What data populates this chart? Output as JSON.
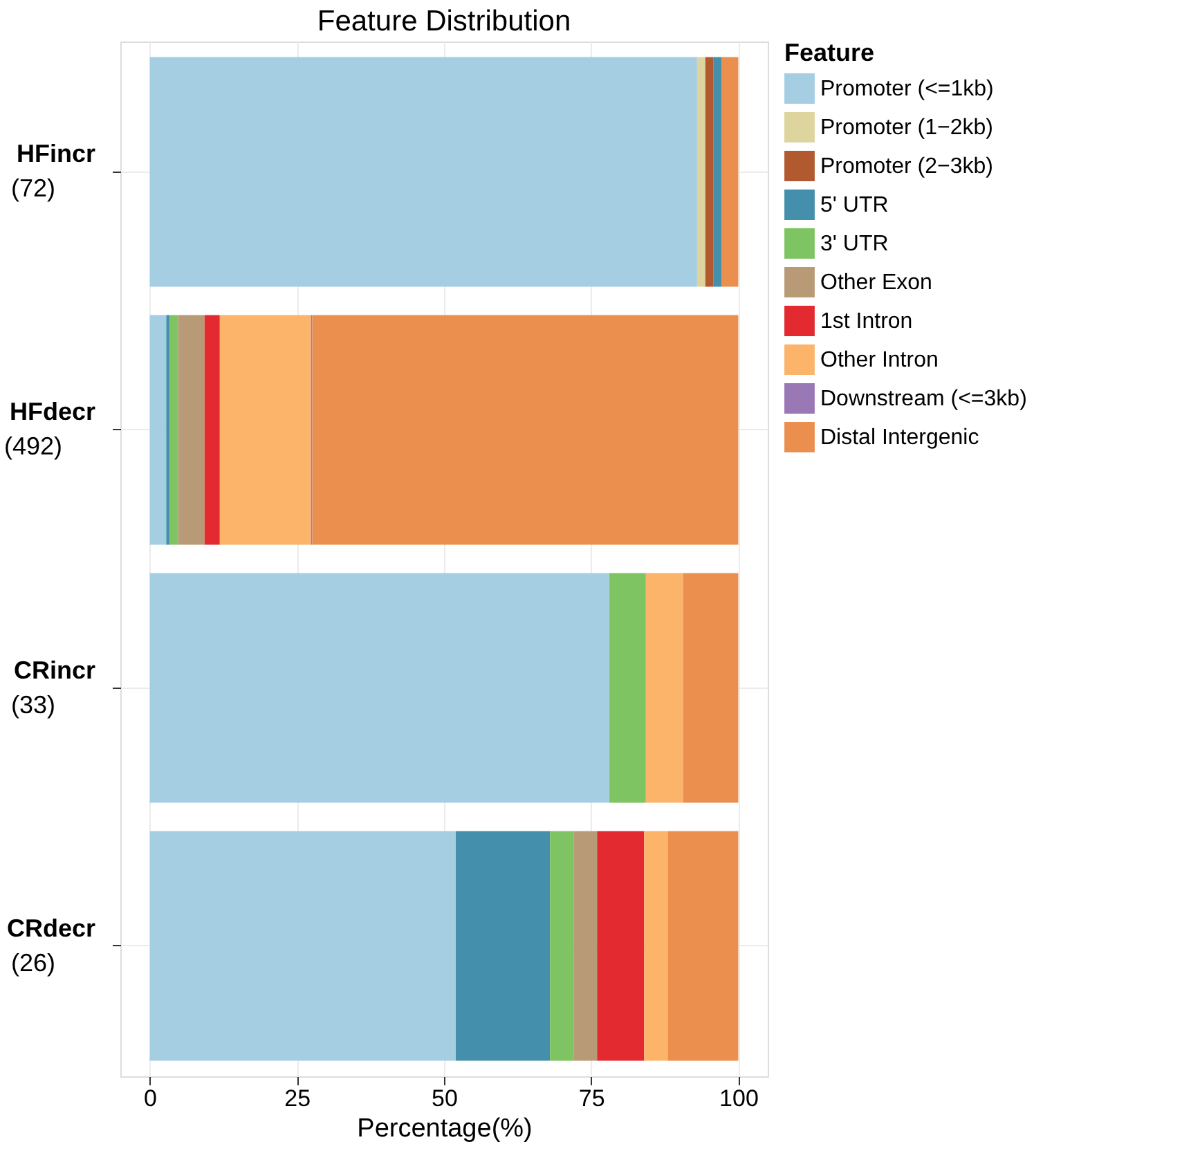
{
  "chart_data": {
    "type": "bar",
    "orientation": "horizontal",
    "stacked": true,
    "title": "Feature Distribution",
    "xlabel": "Percentage(%)",
    "legend_title": "Feature",
    "legend": "right",
    "grid": true,
    "categories": [
      "HFincr\n(72)",
      "HFdecr\n(492)",
      "CRincr\n(33)",
      "CRdecr\n(26)"
    ],
    "xlim": [
      -5,
      105
    ],
    "xticks": [
      0,
      25,
      50,
      75,
      100
    ],
    "series": [
      {
        "name": "Promoter (<=1kb)",
        "color": "#a6cee3",
        "values": [
          93.0,
          2.8,
          78.1,
          52.0
        ]
      },
      {
        "name": "Promoter (1−2kb)",
        "color": "#ddd59d",
        "values": [
          1.4,
          null,
          null,
          null
        ]
      },
      {
        "name": "Promoter (2−3kb)",
        "color": "#b1592f",
        "values": [
          1.4,
          null,
          null,
          null
        ]
      },
      {
        "name": "5' UTR",
        "color": "#448fab",
        "values": [
          1.4,
          0.6,
          null,
          16.0
        ]
      },
      {
        "name": "3' UTR",
        "color": "#7fc462",
        "values": [
          null,
          1.4,
          6.2,
          4.0
        ]
      },
      {
        "name": "Other Exon",
        "color": "#b89a77",
        "values": [
          null,
          4.5,
          null,
          4.0
        ]
      },
      {
        "name": "1st Intron",
        "color": "#e22a30",
        "values": [
          null,
          2.6,
          null,
          8.0
        ]
      },
      {
        "name": "Other Intron",
        "color": "#fbb469",
        "values": [
          null,
          15.5,
          6.3,
          4.0
        ]
      },
      {
        "name": "Downstream (<=3kb)",
        "color": "#9a77b5",
        "values": [
          null,
          0.2,
          null,
          null
        ]
      },
      {
        "name": "Distal Intergenic",
        "color": "#eb8f4f",
        "values": [
          2.8,
          72.4,
          9.4,
          12.0
        ]
      }
    ]
  }
}
